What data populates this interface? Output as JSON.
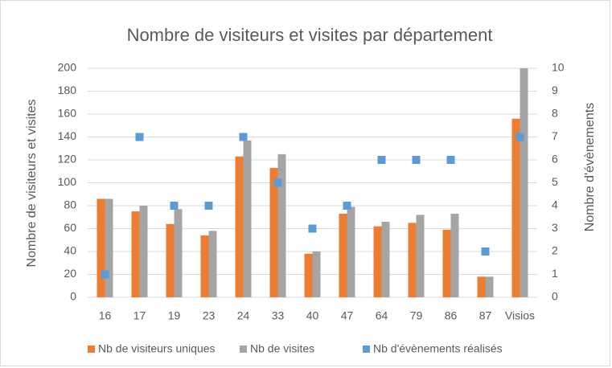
{
  "chart_data": {
    "type": "bar",
    "title": "Nombre de visiteurs et visites par département",
    "ylabel": "Nombre de visiteurs et visites",
    "y2label": "Nombre d'évènements",
    "categories": [
      "16",
      "17",
      "19",
      "23",
      "24",
      "33",
      "40",
      "47",
      "64",
      "79",
      "86",
      "87",
      "Visios"
    ],
    "series": [
      {
        "name": "Nb de visiteurs uniques",
        "color": "#ed7d31",
        "type": "bar",
        "values": [
          86,
          75,
          64,
          54,
          123,
          113,
          38,
          73,
          62,
          65,
          59,
          18,
          156
        ]
      },
      {
        "name": "Nb de visites",
        "color": "#a5a5a5",
        "type": "bar",
        "values": [
          86,
          80,
          77,
          58,
          137,
          125,
          40,
          79,
          66,
          72,
          73,
          18,
          200
        ]
      },
      {
        "name": "Nb d'évènements réalisés",
        "color": "#5b9bd5",
        "type": "scatter",
        "axis": "y2",
        "values": [
          1,
          7,
          4,
          4,
          7,
          5,
          3,
          4,
          6,
          6,
          6,
          2,
          7
        ]
      }
    ],
    "ylim": [
      0,
      200
    ],
    "yticks": [
      0,
      20,
      40,
      60,
      80,
      100,
      120,
      140,
      160,
      180,
      200
    ],
    "y2lim": [
      0,
      10
    ],
    "y2ticks": [
      0,
      1,
      2,
      3,
      4,
      5,
      6,
      7,
      8,
      9,
      10
    ],
    "grid": true,
    "legend": "bottom"
  }
}
